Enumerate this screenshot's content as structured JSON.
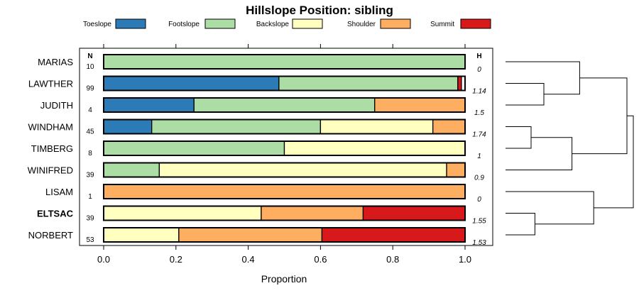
{
  "chart_data": {
    "type": "bar",
    "orientation": "horizontal",
    "stacked": true,
    "title": "Hillslope Position: sibling",
    "xlabel": "Proportion",
    "xlim": [
      0,
      1
    ],
    "xticks": [
      "0.0",
      "0.2",
      "0.4",
      "0.6",
      "0.8",
      "1.0"
    ],
    "n_header": "N",
    "h_header": "H",
    "legend_position": "top",
    "categories": [
      "MARIAS",
      "LAWTHER",
      "JUDITH",
      "WINDHAM",
      "TIMBERG",
      "WINIFRED",
      "LISAM",
      "ELTSAC",
      "NORBERT"
    ],
    "highlighted": "ELTSAC",
    "n": [
      "10",
      "99",
      "4",
      "45",
      "8",
      "39",
      "1",
      "39",
      "53"
    ],
    "h": [
      "0",
      "1.14",
      "1.5",
      "1.74",
      "1",
      "0.9",
      "0",
      "1.55",
      "1.53"
    ],
    "series": [
      {
        "name": "Toeslope",
        "color": "#2c7bb6",
        "values": [
          0,
          0.485,
          0.25,
          0.133,
          0,
          0,
          0,
          0,
          0
        ]
      },
      {
        "name": "Footslope",
        "color": "#abdda4",
        "values": [
          1,
          0.495,
          0.5,
          0.467,
          0.5,
          0.154,
          0,
          0,
          0
        ]
      },
      {
        "name": "Backslope",
        "color": "#ffffbf",
        "values": [
          0,
          0,
          0,
          0.311,
          0.5,
          0.795,
          0,
          0.436,
          0.208
        ]
      },
      {
        "name": "Shoulder",
        "color": "#fdae61",
        "values": [
          0,
          0,
          0.25,
          0.089,
          0,
          0.051,
          1,
          0.282,
          0.396
        ]
      },
      {
        "name": "Summit",
        "color": "#d7191c",
        "values": [
          0,
          0.01,
          0,
          0,
          0,
          0,
          0,
          0.282,
          0.396
        ]
      }
    ],
    "dendrogram": {
      "leaves": [
        "MARIAS",
        "LAWTHER",
        "JUDITH",
        "WINDHAM",
        "TIMBERG",
        "WINIFRED",
        "LISAM",
        "ELTSAC",
        "NORBERT"
      ],
      "max_height": 1,
      "merges": [
        {
          "left": "L1",
          "right": "L2",
          "height": 0.3
        },
        {
          "left": "L0",
          "right": "M0",
          "height": 0.58
        },
        {
          "left": "L3",
          "right": "L4",
          "height": 0.2
        },
        {
          "left": "M2",
          "right": "L5",
          "height": 0.52
        },
        {
          "left": "M1",
          "right": "M3",
          "height": 0.95
        },
        {
          "left": "L7",
          "right": "L8",
          "height": 0.23
        },
        {
          "left": "L6",
          "right": "M5",
          "height": 0.69
        },
        {
          "left": "M4",
          "right": "M6",
          "height": 1.0
        }
      ]
    }
  }
}
